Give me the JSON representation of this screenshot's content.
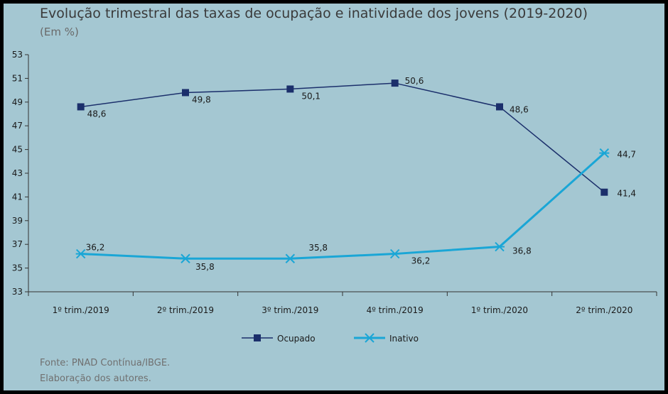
{
  "chart_data": {
    "type": "line",
    "title": "Evolução trimestral das taxas de ocupação e inatividade dos jovens (2019-2020)",
    "subtitle": "(Em %)",
    "categories": [
      "1º trim./2019",
      "2º trim./2019",
      "3º trim./2019",
      "4º trim./2019",
      "1º trim./2020",
      "2º trim./2020"
    ],
    "y_ticks": [
      "33",
      "35",
      "37",
      "39",
      "41",
      "43",
      "45",
      "47",
      "49",
      "51",
      "53"
    ],
    "ylim": [
      33,
      53
    ],
    "grid": false,
    "legend_position": "bottom-center",
    "series": [
      {
        "name": "Ocupado",
        "values": [
          48.6,
          49.8,
          50.1,
          50.6,
          48.6,
          41.4
        ],
        "labels": [
          "48,6",
          "49,8",
          "50,1",
          "50,6",
          "48,6",
          "41,4"
        ],
        "color": "#1b2f6b",
        "marker": "square"
      },
      {
        "name": "Inativo",
        "values": [
          36.2,
          35.8,
          35.8,
          36.2,
          36.8,
          44.7
        ],
        "labels": [
          "36,2",
          "35,8",
          "35,8",
          "36,2",
          "36,8",
          "44,7"
        ],
        "color": "#1aa6d6",
        "marker": "asterisk"
      }
    ]
  },
  "source": {
    "line1": "Fonte: PNAD Contínua/IBGE.",
    "line2": "Elaboração dos autores."
  }
}
